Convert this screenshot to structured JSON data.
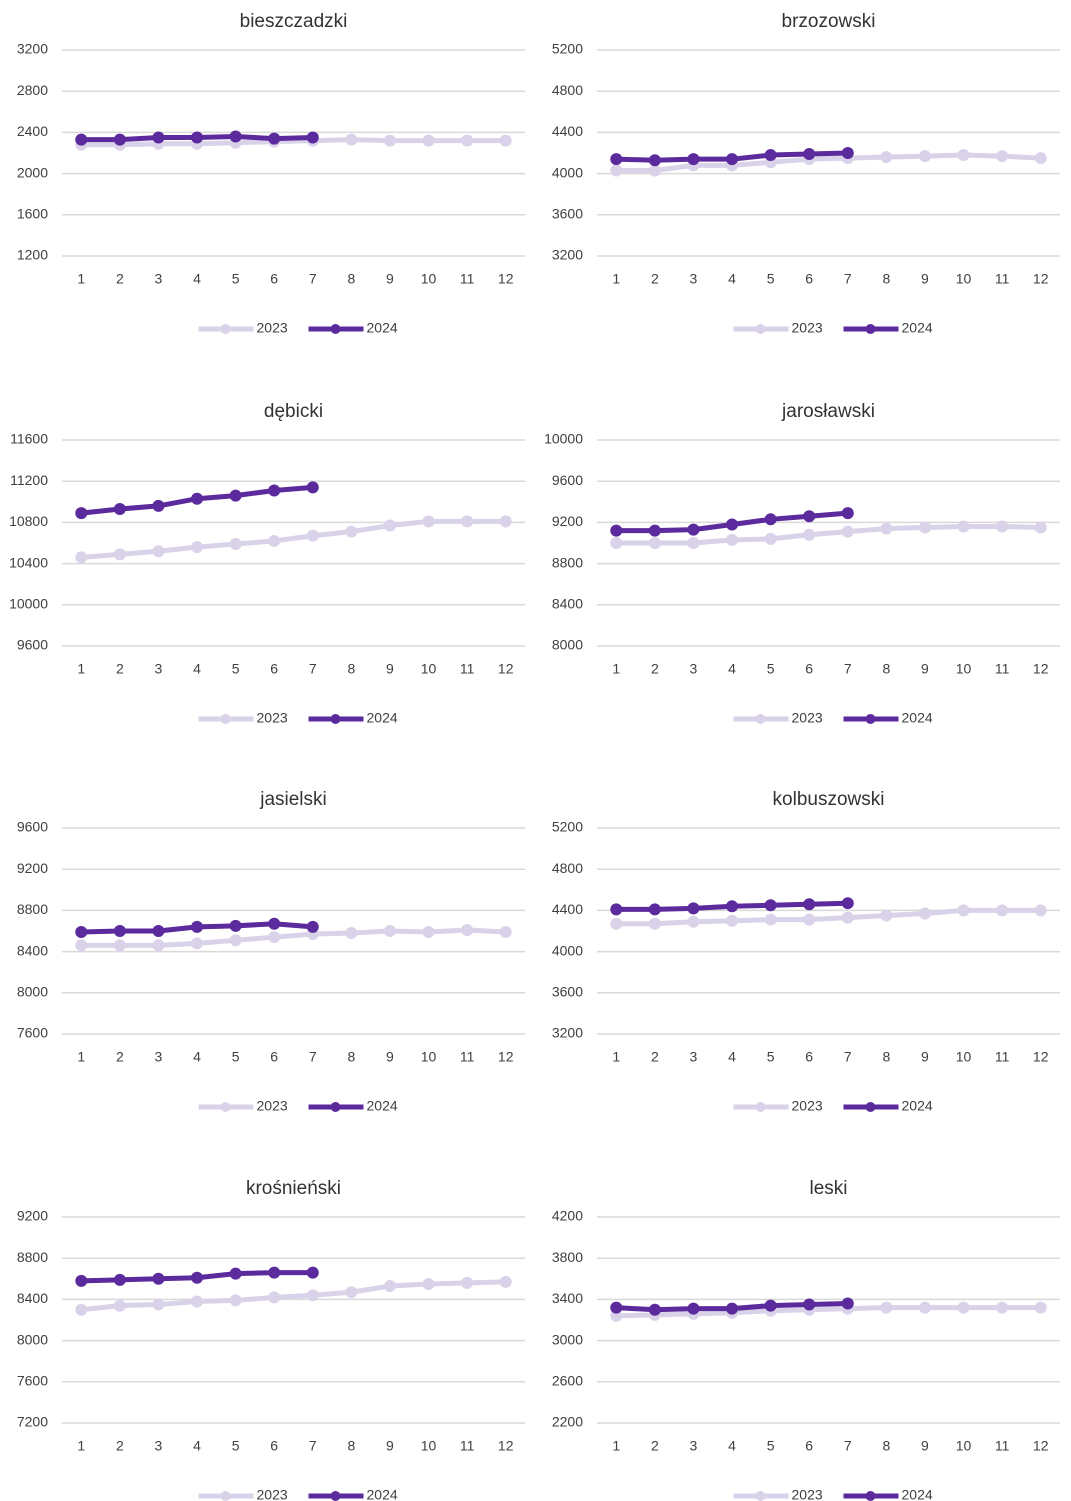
{
  "chart_data": [
    {
      "type": "line",
      "title": "bieszczadzki",
      "categories": [
        "1",
        "2",
        "3",
        "4",
        "5",
        "6",
        "7",
        "8",
        "9",
        "10",
        "11",
        "12"
      ],
      "series": [
        {
          "name": "2023",
          "color": "#d9d2e9",
          "values": [
            2280,
            2280,
            2290,
            2290,
            2300,
            2310,
            2320,
            2330,
            2320,
            2320,
            2320,
            2320
          ]
        },
        {
          "name": "2024",
          "color": "#5b2a9c",
          "values": [
            2330,
            2330,
            2350,
            2350,
            2360,
            2340,
            2350,
            null,
            null,
            null,
            null,
            null
          ]
        }
      ],
      "ylim": [
        1200,
        3200
      ],
      "yticks": [
        1200,
        1600,
        2000,
        2400,
        2800,
        3200
      ],
      "grid": true
    },
    {
      "type": "line",
      "title": "brzozowski",
      "categories": [
        "1",
        "2",
        "3",
        "4",
        "5",
        "6",
        "7",
        "8",
        "9",
        "10",
        "11",
        "12"
      ],
      "series": [
        {
          "name": "2023",
          "color": "#d9d2e9",
          "values": [
            4030,
            4030,
            4080,
            4080,
            4110,
            4140,
            4150,
            4160,
            4170,
            4180,
            4170,
            4150
          ]
        },
        {
          "name": "2024",
          "color": "#5b2a9c",
          "values": [
            4140,
            4130,
            4140,
            4140,
            4180,
            4190,
            4200,
            null,
            null,
            null,
            null,
            null
          ]
        }
      ],
      "ylim": [
        3200,
        5200
      ],
      "yticks": [
        3200,
        3600,
        4000,
        4400,
        4800,
        5200
      ],
      "grid": true
    },
    {
      "type": "line",
      "title": "dębicki",
      "categories": [
        "1",
        "2",
        "3",
        "4",
        "5",
        "6",
        "7",
        "8",
        "9",
        "10",
        "11",
        "12"
      ],
      "series": [
        {
          "name": "2023",
          "color": "#d9d2e9",
          "values": [
            10460,
            10490,
            10520,
            10560,
            10590,
            10620,
            10670,
            10710,
            10770,
            10810,
            10810,
            10810
          ]
        },
        {
          "name": "2024",
          "color": "#5b2a9c",
          "values": [
            10890,
            10930,
            10960,
            11030,
            11060,
            11110,
            11140,
            null,
            null,
            null,
            null,
            null
          ]
        }
      ],
      "ylim": [
        9600,
        11600
      ],
      "yticks": [
        9600,
        10000,
        10400,
        10800,
        11200,
        11600
      ],
      "grid": true
    },
    {
      "type": "line",
      "title": "jarosławski",
      "categories": [
        "1",
        "2",
        "3",
        "4",
        "5",
        "6",
        "7",
        "8",
        "9",
        "10",
        "11",
        "12"
      ],
      "series": [
        {
          "name": "2023",
          "color": "#d9d2e9",
          "values": [
            9000,
            9000,
            9000,
            9030,
            9040,
            9080,
            9110,
            9140,
            9150,
            9160,
            9160,
            9150
          ]
        },
        {
          "name": "2024",
          "color": "#5b2a9c",
          "values": [
            9120,
            9120,
            9130,
            9180,
            9230,
            9260,
            9290,
            null,
            null,
            null,
            null,
            null
          ]
        }
      ],
      "ylim": [
        8000,
        10000
      ],
      "yticks": [
        8000,
        8400,
        8800,
        9200,
        9600,
        10000
      ],
      "grid": true
    },
    {
      "type": "line",
      "title": "jasielski",
      "categories": [
        "1",
        "2",
        "3",
        "4",
        "5",
        "6",
        "7",
        "8",
        "9",
        "10",
        "11",
        "12"
      ],
      "series": [
        {
          "name": "2023",
          "color": "#d9d2e9",
          "values": [
            8460,
            8460,
            8460,
            8480,
            8510,
            8540,
            8570,
            8580,
            8600,
            8590,
            8610,
            8590
          ]
        },
        {
          "name": "2024",
          "color": "#5b2a9c",
          "values": [
            8590,
            8600,
            8600,
            8640,
            8650,
            8670,
            8640,
            null,
            null,
            null,
            null,
            null
          ]
        }
      ],
      "ylim": [
        7600,
        9600
      ],
      "yticks": [
        7600,
        8000,
        8400,
        8800,
        9200,
        9600
      ],
      "grid": true
    },
    {
      "type": "line",
      "title": "kolbuszowski",
      "categories": [
        "1",
        "2",
        "3",
        "4",
        "5",
        "6",
        "7",
        "8",
        "9",
        "10",
        "11",
        "12"
      ],
      "series": [
        {
          "name": "2023",
          "color": "#d9d2e9",
          "values": [
            4270,
            4270,
            4290,
            4300,
            4310,
            4310,
            4330,
            4350,
            4370,
            4400,
            4400,
            4400
          ]
        },
        {
          "name": "2024",
          "color": "#5b2a9c",
          "values": [
            4410,
            4410,
            4420,
            4440,
            4450,
            4460,
            4470,
            null,
            null,
            null,
            null,
            null
          ]
        }
      ],
      "ylim": [
        3200,
        5200
      ],
      "yticks": [
        3200,
        3600,
        4000,
        4400,
        4800,
        5200
      ],
      "grid": true
    },
    {
      "type": "line",
      "title": "krośnieński",
      "categories": [
        "1",
        "2",
        "3",
        "4",
        "5",
        "6",
        "7",
        "8",
        "9",
        "10",
        "11",
        "12"
      ],
      "series": [
        {
          "name": "2023",
          "color": "#d9d2e9",
          "values": [
            8300,
            8340,
            8350,
            8380,
            8390,
            8420,
            8440,
            8470,
            8530,
            8550,
            8560,
            8570
          ]
        },
        {
          "name": "2024",
          "color": "#5b2a9c",
          "values": [
            8580,
            8590,
            8600,
            8610,
            8650,
            8660,
            8660,
            null,
            null,
            null,
            null,
            null
          ]
        }
      ],
      "ylim": [
        7200,
        9200
      ],
      "yticks": [
        7200,
        7600,
        8000,
        8400,
        8800,
        9200
      ],
      "grid": true
    },
    {
      "type": "line",
      "title": "leski",
      "categories": [
        "1",
        "2",
        "3",
        "4",
        "5",
        "6",
        "7",
        "8",
        "9",
        "10",
        "11",
        "12"
      ],
      "series": [
        {
          "name": "2023",
          "color": "#d9d2e9",
          "values": [
            3240,
            3250,
            3260,
            3270,
            3290,
            3300,
            3310,
            3320,
            3320,
            3320,
            3320,
            3320
          ]
        },
        {
          "name": "2024",
          "color": "#5b2a9c",
          "values": [
            3320,
            3300,
            3310,
            3310,
            3340,
            3350,
            3360,
            null,
            null,
            null,
            null,
            null
          ]
        }
      ],
      "ylim": [
        2200,
        4200
      ],
      "yticks": [
        2200,
        2600,
        3000,
        3400,
        3800,
        4200
      ],
      "grid": true
    }
  ]
}
